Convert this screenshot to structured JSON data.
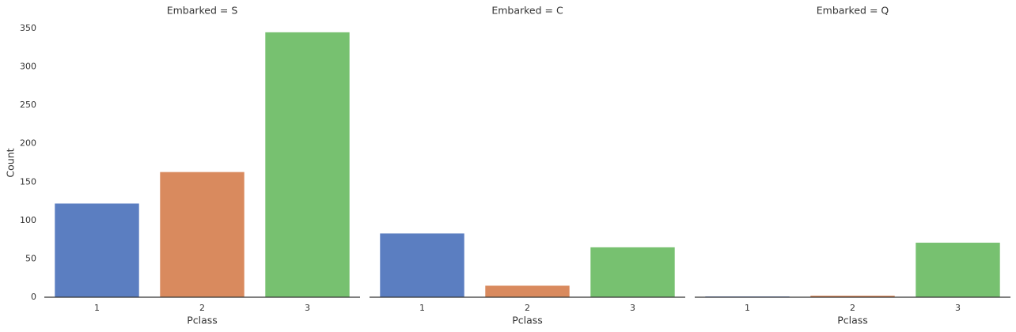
{
  "chart_data": [
    {
      "type": "bar",
      "title": "Embarked = S",
      "xlabel": "Pclass",
      "ylabel": "Count",
      "categories": [
        "1",
        "2",
        "3"
      ],
      "values": [
        122,
        163,
        345
      ],
      "colors": [
        "#5b7ec1",
        "#d98a5e",
        "#77c170"
      ],
      "ylim": [
        0,
        350
      ],
      "yticks": [
        0,
        50,
        100,
        150,
        200,
        250,
        300,
        350
      ]
    },
    {
      "type": "bar",
      "title": "Embarked = C",
      "xlabel": "Pclass",
      "categories": [
        "1",
        "2",
        "3"
      ],
      "values": [
        83,
        15,
        65
      ],
      "colors": [
        "#5b7ec1",
        "#d98a5e",
        "#77c170"
      ],
      "ylim": [
        0,
        350
      ]
    },
    {
      "type": "bar",
      "title": "Embarked = Q",
      "xlabel": "Pclass",
      "categories": [
        "1",
        "2",
        "3"
      ],
      "values": [
        1,
        2,
        71
      ],
      "colors": [
        "#5b7ec1",
        "#d98a5e",
        "#77c170"
      ],
      "ylim": [
        0,
        350
      ]
    }
  ]
}
